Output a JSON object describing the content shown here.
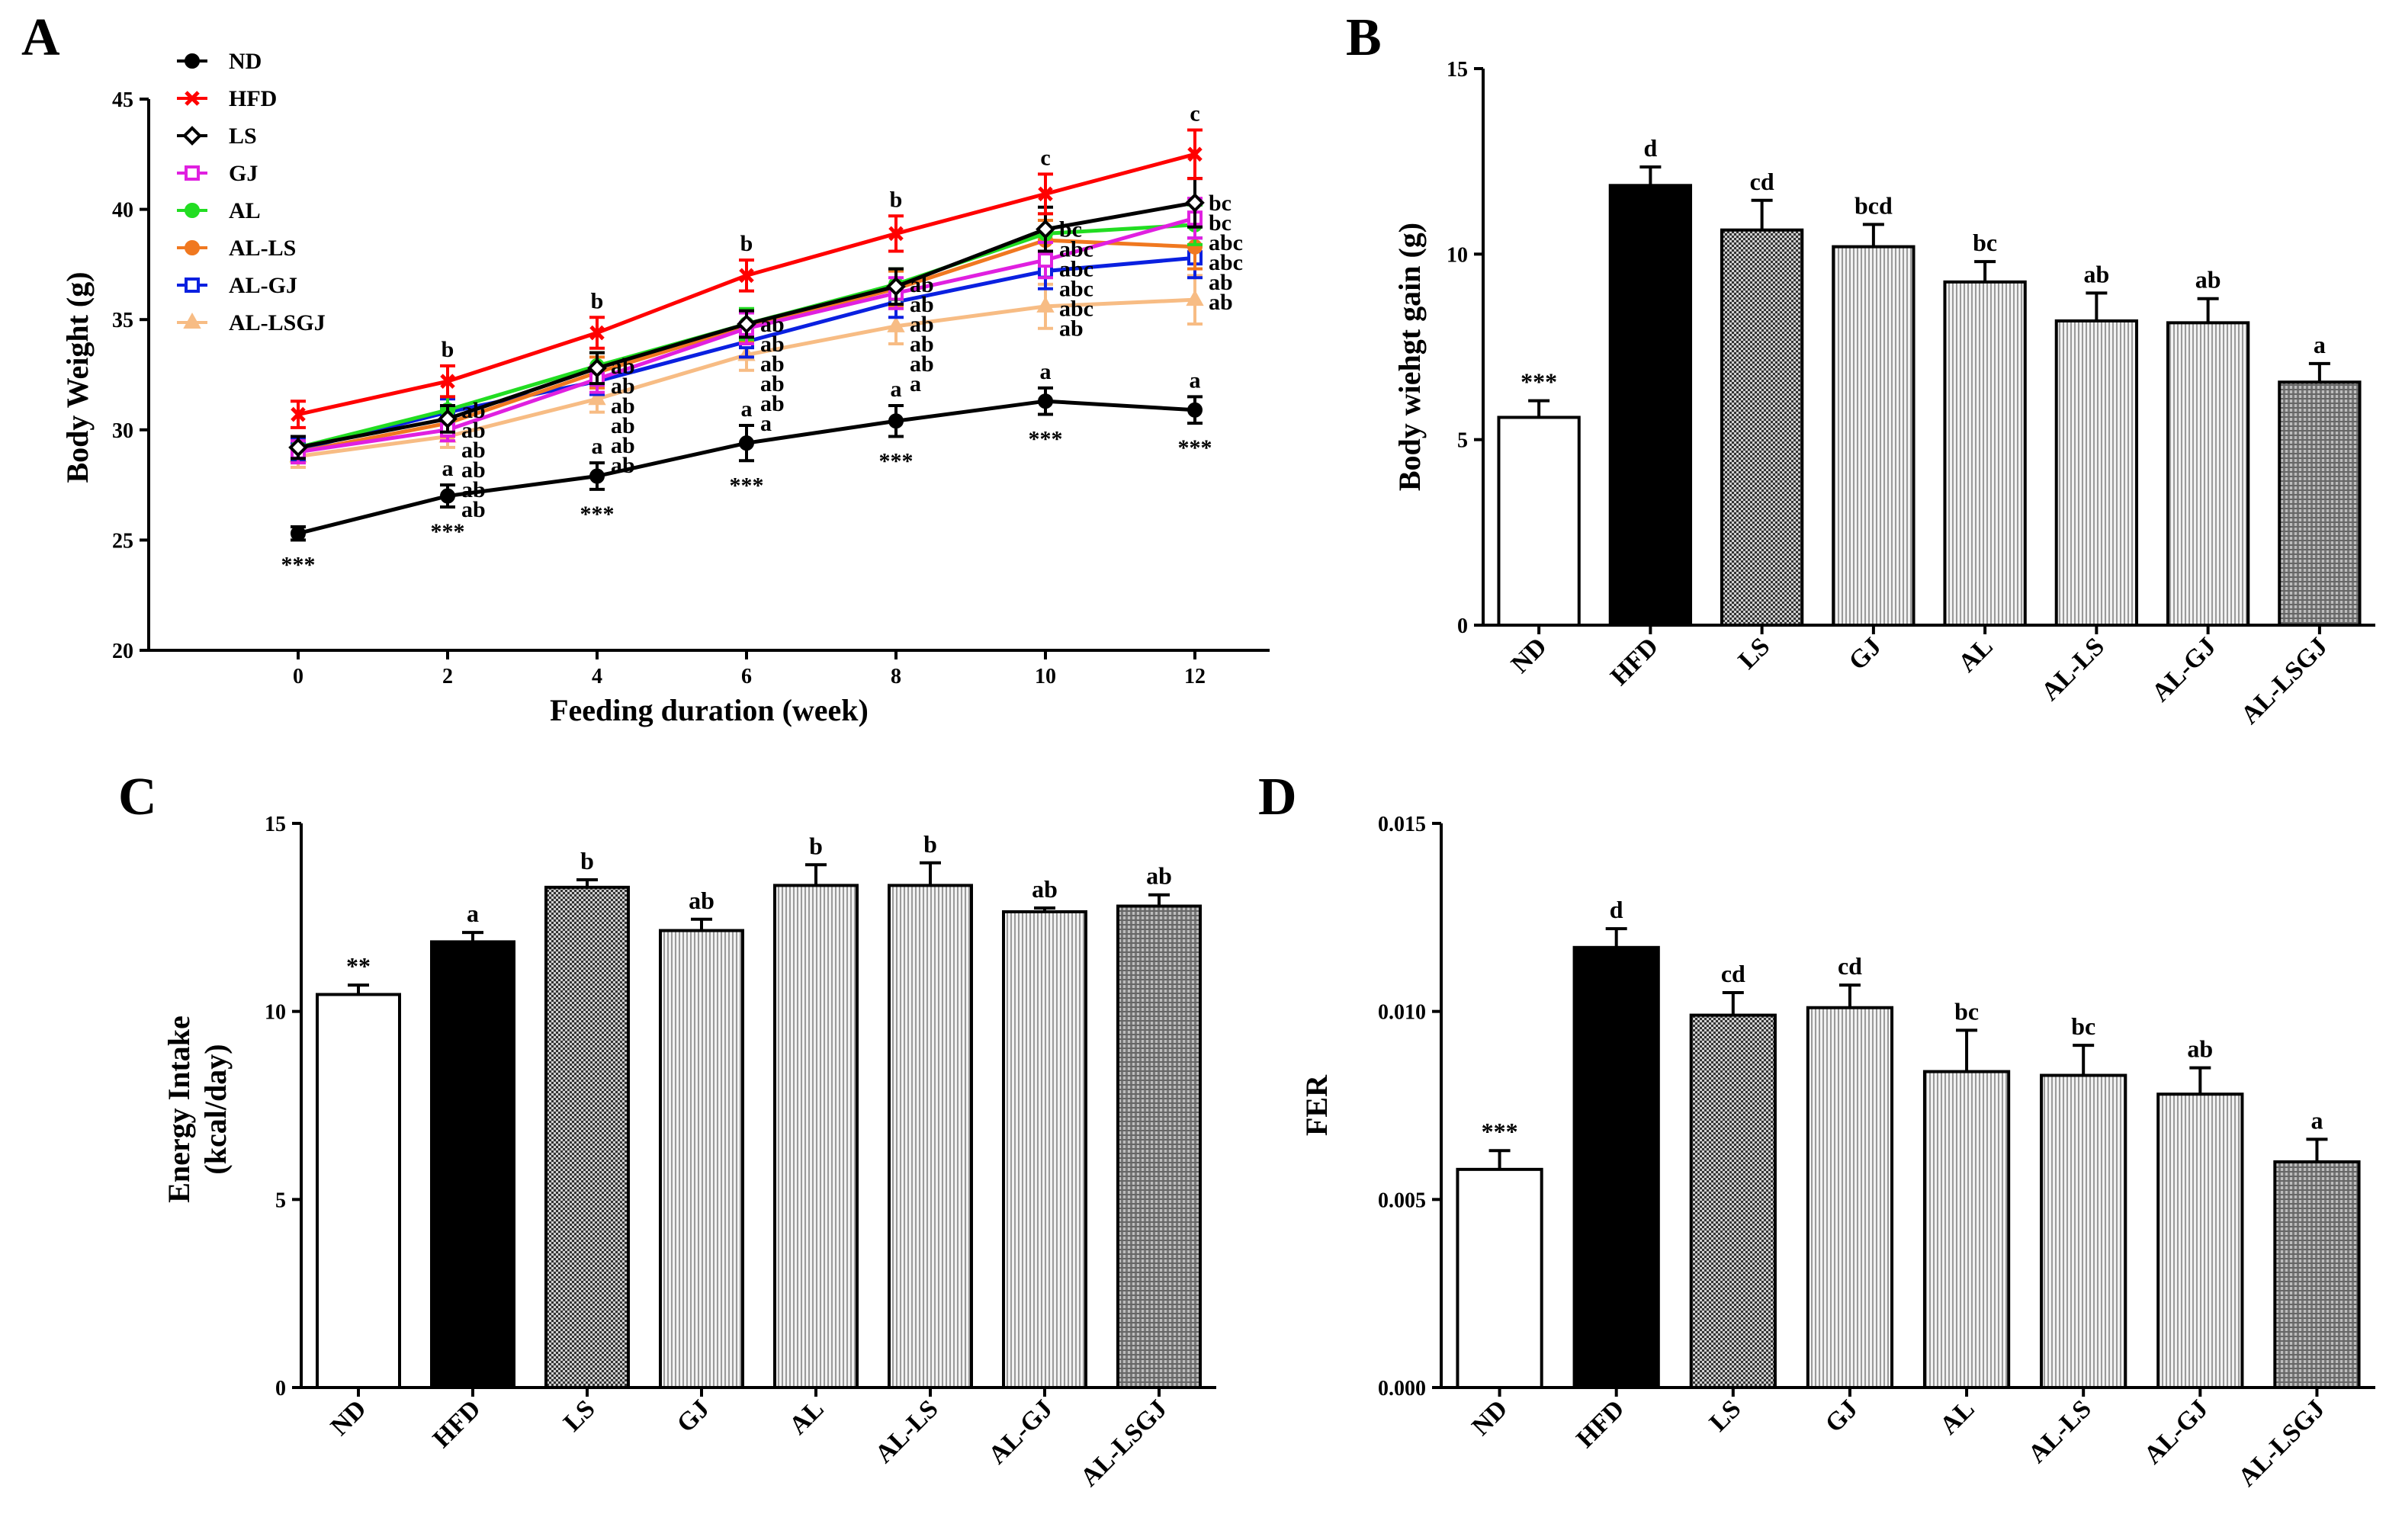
{
  "chart_data": [
    {
      "panel": "A",
      "type": "line",
      "xlabel": "Feeding duration (week)",
      "ylabel": "Body Weight (g)",
      "xlim": [
        -2,
        13
      ],
      "ylim": [
        20,
        45
      ],
      "xticks": [
        "0",
        "2",
        "4",
        "6",
        "8",
        "10",
        "12"
      ],
      "yticks": [
        "20",
        "25",
        "30",
        "35",
        "40",
        "45"
      ],
      "x": [
        0,
        2,
        4,
        6,
        8,
        10,
        12
      ],
      "series": [
        {
          "name": "ND",
          "color": "#000000",
          "marker": "circle",
          "values": [
            25.3,
            27.0,
            27.9,
            29.4,
            30.4,
            31.3,
            30.9
          ],
          "errors": [
            0.3,
            0.5,
            0.6,
            0.8,
            0.7,
            0.6,
            0.6
          ],
          "labels": [
            "***",
            "a ***",
            "a ***",
            "a ***",
            "a ***",
            "a ***",
            "a ***"
          ]
        },
        {
          "name": "HFD",
          "color": "#ff0000",
          "marker": "x",
          "values": [
            30.7,
            32.2,
            34.4,
            37.0,
            38.9,
            40.7,
            42.5
          ],
          "errors": [
            0.6,
            0.7,
            0.7,
            0.7,
            0.8,
            0.9,
            1.1
          ],
          "labels": [
            "",
            "b",
            "b",
            "b",
            "b",
            "c",
            "c"
          ]
        },
        {
          "name": "LS",
          "color": "#000000",
          "marker": "diamond",
          "values": [
            29.2,
            30.5,
            32.8,
            34.8,
            36.5,
            39.1,
            40.3
          ],
          "errors": [
            0.5,
            0.6,
            0.7,
            0.6,
            0.8,
            1.0,
            1.1
          ],
          "labels": [
            "",
            "ab",
            "ab",
            "ab",
            "ab",
            "bc",
            "bc"
          ]
        },
        {
          "name": "GJ",
          "color": "#e020e0",
          "marker": "square",
          "values": [
            29.0,
            30.0,
            32.3,
            34.6,
            36.2,
            37.7,
            39.6
          ],
          "errors": [
            0.5,
            0.5,
            0.6,
            0.7,
            0.7,
            0.8,
            0.9
          ],
          "labels": [
            "",
            "ab",
            "ab",
            "ab",
            "ab",
            "abc",
            "bc"
          ]
        },
        {
          "name": "AL",
          "color": "#22dd22",
          "marker": "circle",
          "values": [
            29.2,
            30.9,
            32.9,
            34.8,
            36.6,
            38.9,
            39.3
          ],
          "errors": [
            0.5,
            0.6,
            0.6,
            0.7,
            0.7,
            0.9,
            0.9
          ],
          "labels": [
            "",
            "ab",
            "ab",
            "ab",
            "ab",
            "abc",
            "abc"
          ]
        },
        {
          "name": "AL-LS",
          "color": "#f07820",
          "marker": "circle",
          "values": [
            29.0,
            30.3,
            32.6,
            34.7,
            36.4,
            38.6,
            38.3
          ],
          "errors": [
            0.5,
            0.6,
            0.7,
            0.7,
            0.8,
            0.9,
            1.0
          ],
          "labels": [
            "",
            "ab",
            "ab",
            "ab",
            "ab",
            "abc",
            "abc"
          ]
        },
        {
          "name": "AL-GJ",
          "color": "#0a20e0",
          "marker": "square",
          "values": [
            29.1,
            30.8,
            32.2,
            34.0,
            35.8,
            37.2,
            37.8
          ],
          "errors": [
            0.5,
            0.6,
            0.6,
            0.7,
            0.7,
            0.8,
            0.9
          ],
          "labels": [
            "",
            "ab",
            "ab",
            "ab",
            "ab",
            "abc",
            "ab"
          ]
        },
        {
          "name": "AL-LSGJ",
          "color": "#f7bc84",
          "marker": "triangle",
          "values": [
            28.8,
            29.7,
            31.4,
            33.4,
            34.7,
            35.6,
            35.9
          ],
          "errors": [
            0.5,
            0.5,
            0.6,
            0.7,
            0.8,
            1.0,
            1.1
          ],
          "labels": [
            "",
            "ab",
            "ab",
            "a",
            "a",
            "ab",
            "ab"
          ]
        }
      ]
    },
    {
      "panel": "B",
      "type": "bar",
      "ylabel": "Body wiehgt gain (g)",
      "ylim": [
        0,
        15
      ],
      "yticks": [
        "0",
        "5",
        "10",
        "15"
      ],
      "categories": [
        "ND",
        "HFD",
        "LS",
        "GJ",
        "AL",
        "AL-LS",
        "AL-GJ",
        "AL-LSGJ"
      ],
      "values": [
        5.6,
        11.85,
        10.65,
        10.2,
        9.25,
        8.2,
        8.15,
        6.55
      ],
      "errors": [
        0.45,
        0.5,
        0.8,
        0.6,
        0.55,
        0.75,
        0.65,
        0.5
      ],
      "labels": [
        "***",
        "d",
        "cd",
        "bcd",
        "bc",
        "ab",
        "ab",
        "a"
      ],
      "fills": [
        "white",
        "black",
        "dots",
        "lines",
        "lines",
        "lines",
        "lines",
        "grid"
      ]
    },
    {
      "panel": "C",
      "type": "bar",
      "ylabel": [
        "Energy Intake",
        "(kcal/day)"
      ],
      "ylim": [
        0,
        15
      ],
      "yticks": [
        "0",
        "5",
        "10",
        "15"
      ],
      "categories": [
        "ND",
        "HFD",
        "LS",
        "GJ",
        "AL",
        "AL-LS",
        "AL-GJ",
        "AL-LSGJ"
      ],
      "values": [
        10.45,
        11.85,
        13.3,
        12.15,
        13.35,
        13.35,
        12.65,
        12.8
      ],
      "errors": [
        0.25,
        0.25,
        0.2,
        0.3,
        0.55,
        0.6,
        0.1,
        0.3
      ],
      "labels": [
        "**",
        "a",
        "b",
        "ab",
        "b",
        "b",
        "ab",
        "ab"
      ],
      "fills": [
        "white",
        "black",
        "dots",
        "lines",
        "lines",
        "lines",
        "lines",
        "grid"
      ]
    },
    {
      "panel": "D",
      "type": "bar",
      "ylabel": "FER",
      "ylim": [
        0,
        0.015
      ],
      "yticks": [
        "0.000",
        "0.005",
        "0.010",
        "0.015"
      ],
      "categories": [
        "ND",
        "HFD",
        "LS",
        "GJ",
        "AL",
        "AL-LS",
        "AL-GJ",
        "AL-LSGJ"
      ],
      "values": [
        0.0058,
        0.0117,
        0.0099,
        0.0101,
        0.0084,
        0.0083,
        0.0078,
        0.006
      ],
      "errors": [
        0.0005,
        0.0005,
        0.0006,
        0.0006,
        0.0011,
        0.0008,
        0.0007,
        0.0006
      ],
      "labels": [
        "***",
        "d",
        "cd",
        "cd",
        "bc",
        "bc",
        "ab",
        "a"
      ],
      "fills": [
        "white",
        "black",
        "dots",
        "lines",
        "lines",
        "lines",
        "lines",
        "grid"
      ]
    }
  ]
}
